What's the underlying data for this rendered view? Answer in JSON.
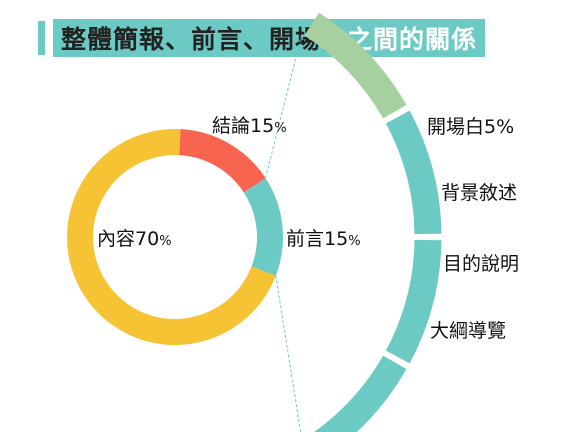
{
  "title": {
    "main": "整體簡報、前言、開場白",
    "tail": "之間的關係",
    "accent_color": "#6ccac4",
    "bar_color": "#6ccac4"
  },
  "chart_data": {
    "type": "pie",
    "slices": [
      {
        "name": "前言",
        "value": 15,
        "label": "前言15",
        "unit": "%",
        "color": "#6ccac4"
      },
      {
        "name": "內容",
        "value": 70,
        "label": "內容70",
        "unit": "%",
        "color": "#f6c335"
      },
      {
        "name": "結論",
        "value": 15,
        "label": "結論15",
        "unit": "%",
        "color": "#f76450"
      }
    ],
    "breakdown_of": "前言",
    "breakdown": [
      {
        "label": "開場白5%",
        "value": 5,
        "color": "#a6d0a0"
      },
      {
        "label": "背景敘述",
        "color": "#6ccac4"
      },
      {
        "label": "目的說明",
        "color": "#6ccac4"
      },
      {
        "label": "大綱導覽",
        "color": "#6ccac4"
      }
    ],
    "connector_color": "#6ccac4"
  }
}
